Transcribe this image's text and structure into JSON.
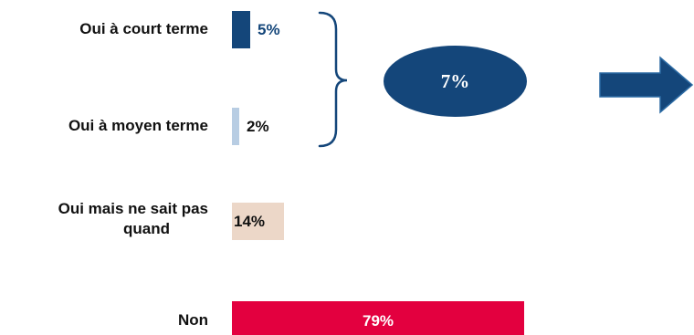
{
  "chart_data": {
    "type": "bar",
    "orientation": "horizontal",
    "categories": [
      "Oui à court terme",
      "Oui à moyen terme",
      "Oui mais ne sait pas quand",
      "Non"
    ],
    "category_lines": [
      [
        "Oui à court terme"
      ],
      [
        "Oui à moyen terme"
      ],
      [
        "Oui mais ne sait pas",
        "quand"
      ],
      [
        "Non"
      ]
    ],
    "values": [
      5,
      2,
      14,
      79
    ],
    "value_labels": [
      "5%",
      "2%",
      "14%",
      "79%"
    ],
    "bar_colors": [
      "#14467a",
      "#b8cde3",
      "#ecd7c8",
      "#e3003f"
    ],
    "xlim": [
      0,
      100
    ],
    "grid": false,
    "group_annotation": {
      "groups": [
        "Oui à court terme",
        "Oui à moyen terme"
      ],
      "label": "7%",
      "shape": "ellipse",
      "color": "#14467a"
    },
    "arrow": {
      "direction": "right",
      "color": "#14467a"
    }
  }
}
